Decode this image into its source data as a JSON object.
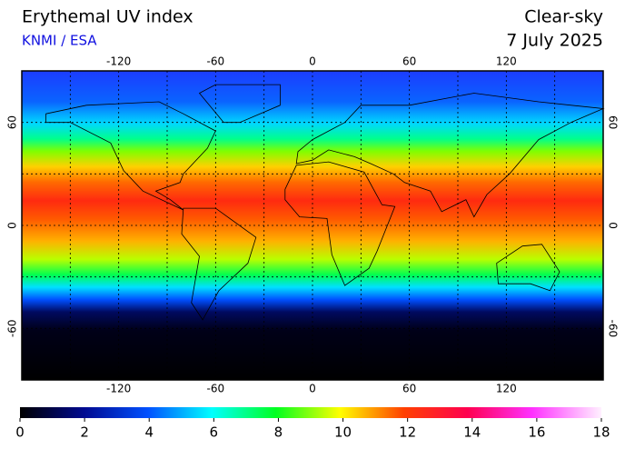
{
  "header": {
    "title": "Erythemal UV index",
    "source": "KNMI / ESA",
    "condition": "Clear-sky",
    "date": "7 July 2025"
  },
  "map": {
    "lonlim": [
      -180,
      180
    ],
    "latlim": [
      -90,
      90
    ],
    "lon_ticks": [
      -120,
      -60,
      0,
      60,
      120
    ],
    "lat_ticks": [
      60,
      0,
      -60
    ]
  },
  "colorbar": {
    "lim": [
      0,
      18
    ],
    "ticks": [
      0,
      2,
      4,
      6,
      8,
      10,
      12,
      14,
      16,
      18
    ]
  }
}
